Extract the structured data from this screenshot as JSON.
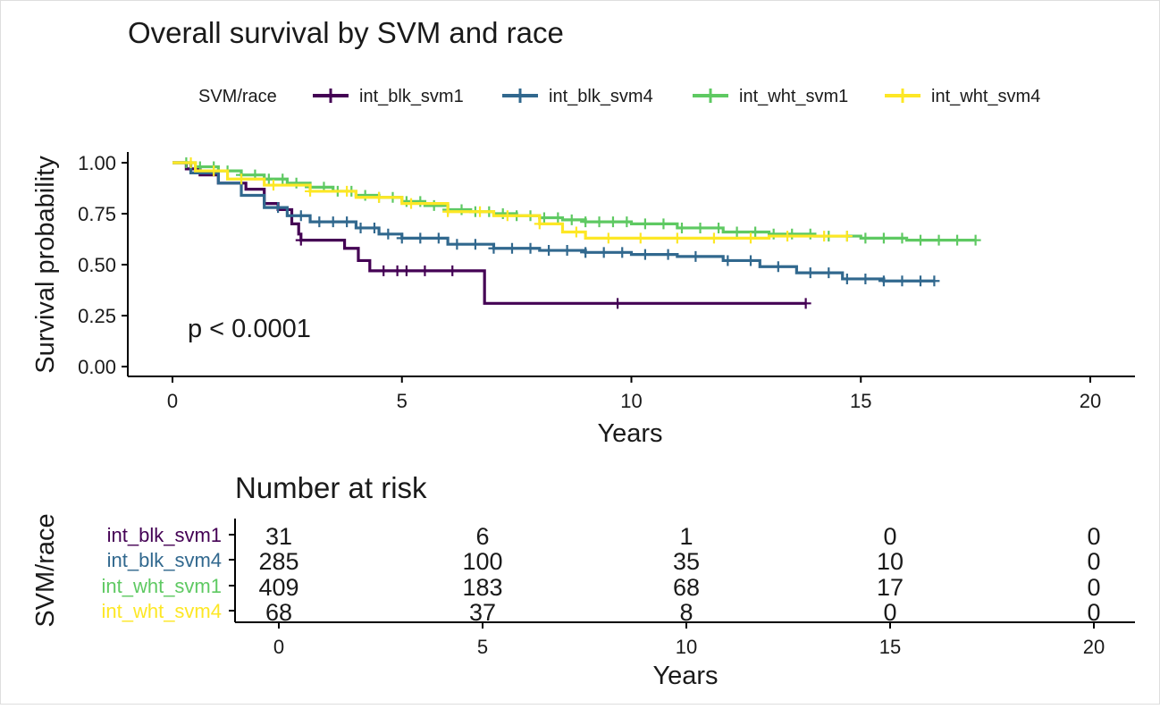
{
  "chart_data": [
    {
      "type": "line",
      "subtype": "kaplan-meier",
      "title": "Overall survival by SVM and race",
      "xlabel": "Years",
      "ylabel": "Survival probability",
      "xlim": [
        0,
        20
      ],
      "ylim": [
        0,
        1
      ],
      "xticks": [
        0,
        5,
        10,
        15,
        20
      ],
      "yticks": [
        "0.00",
        "0.25",
        "0.50",
        "0.75",
        "1.00"
      ],
      "annotation": "p < 0.0001",
      "legend": {
        "title": "SVM/race",
        "position": "top"
      },
      "grid": false,
      "series": [
        {
          "name": "int_blk_svm1",
          "color": "#440154",
          "steps": [
            [
              0,
              1.0
            ],
            [
              0.3,
              0.97
            ],
            [
              0.6,
              0.94
            ],
            [
              1.0,
              0.9
            ],
            [
              1.6,
              0.87
            ],
            [
              2.0,
              0.8
            ],
            [
              2.3,
              0.77
            ],
            [
              2.6,
              0.7
            ],
            [
              2.75,
              0.65
            ],
            [
              2.8,
              0.62
            ],
            [
              3.6,
              0.62
            ],
            [
              3.75,
              0.58
            ],
            [
              4.05,
              0.52
            ],
            [
              4.3,
              0.47
            ],
            [
              6.8,
              0.31
            ],
            [
              13.8,
              0.31
            ]
          ],
          "censors": [
            2.8,
            4.6,
            4.9,
            5.1,
            5.5,
            6.1,
            9.7,
            13.8
          ]
        },
        {
          "name": "int_blk_svm4",
          "color": "#31688e",
          "steps": [
            [
              0,
              1.0
            ],
            [
              0.4,
              0.95
            ],
            [
              1.0,
              0.9
            ],
            [
              1.5,
              0.84
            ],
            [
              2.0,
              0.78
            ],
            [
              2.5,
              0.74
            ],
            [
              3.0,
              0.71
            ],
            [
              4.0,
              0.68
            ],
            [
              4.5,
              0.65
            ],
            [
              5.0,
              0.63
            ],
            [
              6.0,
              0.6
            ],
            [
              7.0,
              0.58
            ],
            [
              8.0,
              0.57
            ],
            [
              9.0,
              0.56
            ],
            [
              10.0,
              0.55
            ],
            [
              11.0,
              0.54
            ],
            [
              12.0,
              0.52
            ],
            [
              12.8,
              0.49
            ],
            [
              13.6,
              0.46
            ],
            [
              14.6,
              0.43
            ],
            [
              15.5,
              0.42
            ],
            [
              16.6,
              0.42
            ]
          ],
          "censors": [
            2.3,
            2.8,
            3.2,
            3.5,
            3.8,
            4.1,
            4.4,
            4.7,
            5.0,
            5.4,
            5.8,
            6.2,
            6.6,
            7.0,
            7.4,
            7.8,
            8.2,
            8.6,
            9.0,
            9.4,
            9.8,
            10.3,
            10.8,
            11.4,
            12.1,
            12.6,
            13.2,
            13.9,
            14.3,
            14.7,
            15.1,
            15.5,
            15.9,
            16.3,
            16.6
          ]
        },
        {
          "name": "int_wht_svm1",
          "color": "#5ec962",
          "steps": [
            [
              0,
              1.0
            ],
            [
              0.5,
              0.98
            ],
            [
              1.0,
              0.96
            ],
            [
              1.5,
              0.94
            ],
            [
              2.0,
              0.92
            ],
            [
              2.5,
              0.9
            ],
            [
              3.0,
              0.88
            ],
            [
              3.5,
              0.86
            ],
            [
              4.0,
              0.84
            ],
            [
              4.5,
              0.83
            ],
            [
              5.0,
              0.81
            ],
            [
              5.5,
              0.79
            ],
            [
              6.0,
              0.77
            ],
            [
              6.5,
              0.76
            ],
            [
              7.0,
              0.75
            ],
            [
              7.5,
              0.74
            ],
            [
              8.0,
              0.73
            ],
            [
              8.5,
              0.72
            ],
            [
              9.0,
              0.71
            ],
            [
              10.0,
              0.7
            ],
            [
              11.0,
              0.68
            ],
            [
              12.0,
              0.66
            ],
            [
              13.0,
              0.65
            ],
            [
              14.0,
              0.64
            ],
            [
              15.0,
              0.63
            ],
            [
              16.0,
              0.62
            ],
            [
              17.5,
              0.62
            ]
          ],
          "censors": [
            0.3,
            0.6,
            0.9,
            1.2,
            1.5,
            1.8,
            2.1,
            2.4,
            2.7,
            3.0,
            3.3,
            3.6,
            3.9,
            4.2,
            4.5,
            4.8,
            5.1,
            5.4,
            5.7,
            6.0,
            6.3,
            6.6,
            6.9,
            7.2,
            7.5,
            7.8,
            8.1,
            8.4,
            8.7,
            9.0,
            9.3,
            9.6,
            9.9,
            10.3,
            10.7,
            11.1,
            11.5,
            11.9,
            12.3,
            12.7,
            13.1,
            13.5,
            13.9,
            14.3,
            14.7,
            15.1,
            15.5,
            15.9,
            16.3,
            16.7,
            17.1,
            17.5
          ]
        },
        {
          "name": "int_wht_svm4",
          "color": "#fde725",
          "steps": [
            [
              0,
              1.0
            ],
            [
              0.5,
              0.96
            ],
            [
              1.2,
              0.92
            ],
            [
              2.0,
              0.89
            ],
            [
              3.0,
              0.86
            ],
            [
              4.0,
              0.83
            ],
            [
              5.0,
              0.8
            ],
            [
              6.0,
              0.76
            ],
            [
              7.0,
              0.74
            ],
            [
              8.0,
              0.7
            ],
            [
              8.5,
              0.66
            ],
            [
              9.0,
              0.63
            ],
            [
              12.0,
              0.63
            ],
            [
              13.0,
              0.64
            ],
            [
              14.7,
              0.64
            ]
          ],
          "censors": [
            0.4,
            0.9,
            1.5,
            2.2,
            3.0,
            3.8,
            4.5,
            5.2,
            6.0,
            6.7,
            7.3,
            8.0,
            8.8,
            9.5,
            10.2,
            11.0,
            11.8,
            12.6,
            13.4,
            14.2,
            14.7
          ]
        }
      ]
    },
    {
      "type": "table",
      "title": "Number at risk",
      "xlabel": "Years",
      "ylabel": "SVM/race",
      "xlim": [
        0,
        20
      ],
      "xticks": [
        0,
        5,
        10,
        15,
        20
      ],
      "times": [
        0,
        5,
        10,
        15,
        20
      ],
      "rows": [
        {
          "name": "int_blk_svm1",
          "color": "#440154",
          "values": [
            31,
            6,
            1,
            0,
            0
          ]
        },
        {
          "name": "int_blk_svm4",
          "color": "#31688e",
          "values": [
            285,
            100,
            35,
            10,
            0
          ]
        },
        {
          "name": "int_wht_svm1",
          "color": "#5ec962",
          "values": [
            409,
            183,
            68,
            17,
            0
          ]
        },
        {
          "name": "int_wht_svm4",
          "color": "#fde725",
          "values": [
            68,
            37,
            8,
            0,
            0
          ]
        }
      ]
    }
  ]
}
